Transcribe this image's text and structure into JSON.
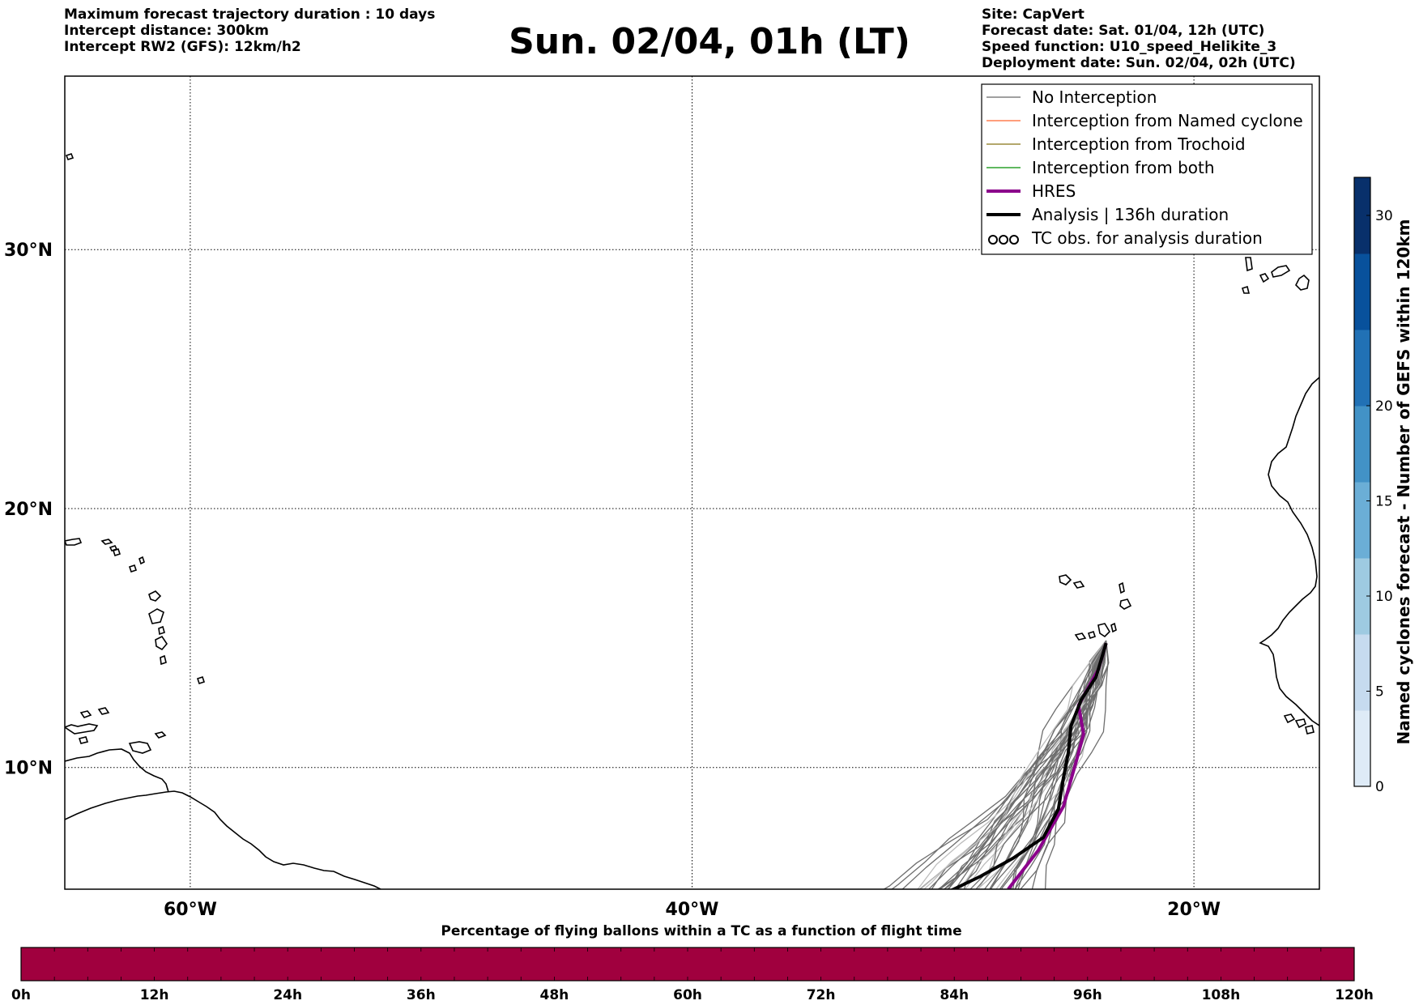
{
  "header": {
    "left_lines": [
      "Maximum forecast trajectory duration : 10 days",
      "Intercept distance: 300km",
      "Intercept RW2 (GFS):  12km/h2"
    ],
    "title": "Sun. 02/04, 01h (LT)",
    "right_lines": [
      "Site: CapVert",
      "Forecast date: Sat. 01/04, 12h (UTC)",
      "Speed function: U10_speed_Helikite_3",
      "Deployment date: Sun. 02/04, 02h (UTC)"
    ]
  },
  "map": {
    "lon_range": [
      -65,
      -15
    ],
    "lat_range": [
      5.3,
      36.7
    ],
    "lon_gridlines": [
      -60,
      -40,
      -20
    ],
    "lat_gridlines": [
      10,
      20,
      30
    ],
    "lon_labels": [
      "60°W",
      "40°W",
      "20°W"
    ],
    "lat_labels": [
      "10°N",
      "20°N",
      "30°N"
    ],
    "launch_site": {
      "lon": -23.5,
      "lat": 14.9
    },
    "colors": {
      "no_interception": "#808080",
      "named_cyclone": "#ff7f50",
      "trochoid": "#9a8a3c",
      "both": "#2ca02c",
      "hres": "#8b008b",
      "analysis": "#000000"
    }
  },
  "legend": {
    "items": [
      {
        "label": "No Interception",
        "color": "#808080",
        "width": 1.5,
        "kind": "line"
      },
      {
        "label": "Interception from Named cyclone",
        "color": "#ff7f50",
        "width": 1.5,
        "kind": "line"
      },
      {
        "label": "Interception from Trochoid",
        "color": "#9a8a3c",
        "width": 1.5,
        "kind": "line"
      },
      {
        "label": "Interception from both",
        "color": "#2ca02c",
        "width": 1.5,
        "kind": "line"
      },
      {
        "label": "HRES",
        "color": "#8b008b",
        "width": 4,
        "kind": "line"
      },
      {
        "label": "Analysis | 136h duration",
        "color": "#000000",
        "width": 4,
        "kind": "line"
      },
      {
        "label": "TC obs. for analysis duration",
        "color": "#000000",
        "width": 2,
        "kind": "symbol"
      }
    ]
  },
  "trajectories": {
    "hres": [
      [
        -23.5,
        14.8
      ],
      [
        -23.8,
        13.8
      ],
      [
        -24.6,
        12.4
      ],
      [
        -24.4,
        11.3
      ],
      [
        -24.7,
        10.2
      ],
      [
        -25.2,
        8.5
      ],
      [
        -26.2,
        6.8
      ],
      [
        -27.4,
        5.3
      ]
    ],
    "analysis": [
      [
        -23.5,
        14.8
      ],
      [
        -23.9,
        13.5
      ],
      [
        -24.5,
        12.6
      ],
      [
        -24.9,
        11.6
      ],
      [
        -25.0,
        10.6
      ],
      [
        -25.2,
        9.6
      ],
      [
        -25.4,
        8.4
      ],
      [
        -26.0,
        7.3
      ],
      [
        -27.2,
        6.5
      ],
      [
        -28.5,
        5.8
      ],
      [
        -30.0,
        5.1
      ]
    ]
  },
  "colorbar": {
    "title": "Named cyclones forecast - Number of GEFS within 120km",
    "ticks": [
      0,
      5,
      10,
      15,
      20,
      30
    ],
    "max": 32,
    "colors": [
      "#deebf7",
      "#c6dbef",
      "#9ecae1",
      "#6baed6",
      "#4292c6",
      "#2171b5",
      "#08519c",
      "#08306b"
    ]
  },
  "percentage_bar": {
    "title": "Percentage of flying ballons within a TC as a function of flight time",
    "ticks": [
      "0h",
      "12h",
      "24h",
      "36h",
      "48h",
      "60h",
      "72h",
      "84h",
      "96h",
      "108h",
      "120h"
    ],
    "segments": 40,
    "fill_color": "#a0003e"
  }
}
